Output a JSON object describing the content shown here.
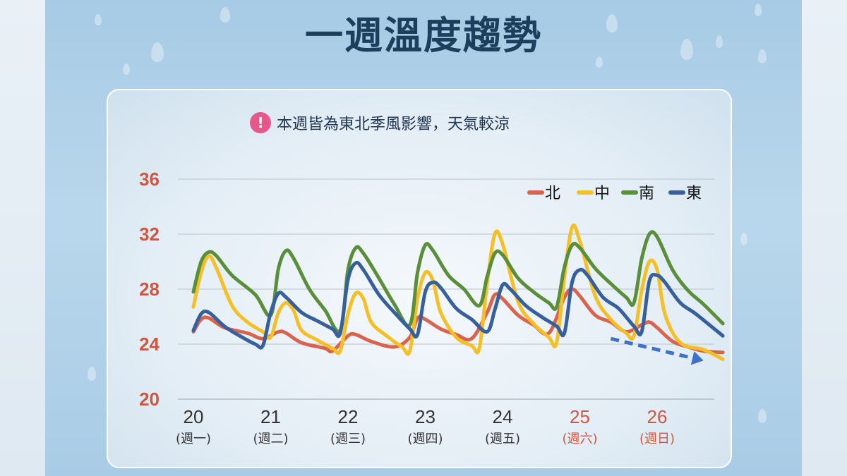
{
  "title": "一週溫度趨勢",
  "notice": {
    "icon": "exclamation-icon",
    "text": "本週皆為東北季風影響，天氣較涼"
  },
  "colors": {
    "north": "#d9644d",
    "central": "#f5bf26",
    "south": "#5a8f3a",
    "east": "#365f9e",
    "weekend": "#d0573f",
    "weekday": "#333333",
    "trend_arrow": "#3f72c6"
  },
  "chart_data": {
    "type": "line",
    "ylim": [
      20,
      36
    ],
    "yticks": [
      "36",
      "32",
      "28",
      "24",
      "20"
    ],
    "categories": [
      {
        "day": "20",
        "weekday": "(週一)",
        "weekend": false
      },
      {
        "day": "21",
        "weekday": "(週二)",
        "weekend": false
      },
      {
        "day": "22",
        "weekday": "(週三)",
        "weekend": false
      },
      {
        "day": "23",
        "weekday": "(週四)",
        "weekend": false
      },
      {
        "day": "24",
        "weekday": "(週五)",
        "weekend": false
      },
      {
        "day": "25",
        "weekday": "(週六)",
        "weekend": true
      },
      {
        "day": "26",
        "weekday": "(週日)",
        "weekend": true
      }
    ],
    "x_start": 20,
    "x_end": 26.85,
    "grid": true,
    "legend_position": "top-right",
    "series": [
      {
        "name": "北",
        "color_key": "north",
        "points": [
          [
            20.0,
            24.9
          ],
          [
            20.1,
            25.8
          ],
          [
            20.2,
            25.9
          ],
          [
            20.4,
            25.2
          ],
          [
            20.7,
            24.8
          ],
          [
            20.9,
            24.4
          ],
          [
            21.1,
            24.9
          ],
          [
            21.2,
            24.8
          ],
          [
            21.4,
            24.1
          ],
          [
            21.7,
            23.7
          ],
          [
            21.8,
            23.5
          ],
          [
            22.0,
            24.6
          ],
          [
            22.1,
            24.7
          ],
          [
            22.3,
            24.2
          ],
          [
            22.6,
            23.8
          ],
          [
            22.8,
            24.5
          ],
          [
            22.9,
            25.9
          ],
          [
            23.0,
            25.8
          ],
          [
            23.2,
            25.1
          ],
          [
            23.4,
            24.7
          ],
          [
            23.6,
            24.4
          ],
          [
            23.8,
            26.3
          ],
          [
            23.9,
            27.6
          ],
          [
            24.0,
            27.3
          ],
          [
            24.2,
            26.1
          ],
          [
            24.4,
            25.4
          ],
          [
            24.6,
            24.8
          ],
          [
            24.8,
            27.4
          ],
          [
            24.9,
            28.0
          ],
          [
            25.0,
            27.5
          ],
          [
            25.2,
            26.1
          ],
          [
            25.4,
            25.6
          ],
          [
            25.6,
            24.9
          ],
          [
            25.8,
            25.4
          ],
          [
            25.9,
            25.6
          ],
          [
            26.0,
            25.2
          ],
          [
            26.2,
            24.2
          ],
          [
            26.4,
            23.8
          ],
          [
            26.6,
            23.5
          ],
          [
            26.85,
            23.4
          ]
        ]
      },
      {
        "name": "中",
        "color_key": "central",
        "points": [
          [
            20.0,
            26.7
          ],
          [
            20.1,
            29.2
          ],
          [
            20.2,
            30.4
          ],
          [
            20.3,
            29.5
          ],
          [
            20.5,
            26.8
          ],
          [
            20.7,
            25.6
          ],
          [
            20.9,
            24.9
          ],
          [
            21.0,
            24.5
          ],
          [
            21.1,
            26.3
          ],
          [
            21.2,
            27.0
          ],
          [
            21.3,
            26.4
          ],
          [
            21.4,
            25.0
          ],
          [
            21.6,
            24.3
          ],
          [
            21.8,
            23.7
          ],
          [
            21.9,
            23.5
          ],
          [
            22.0,
            26.2
          ],
          [
            22.1,
            27.7
          ],
          [
            22.2,
            27.3
          ],
          [
            22.3,
            25.6
          ],
          [
            22.5,
            24.6
          ],
          [
            22.7,
            23.8
          ],
          [
            22.8,
            23.5
          ],
          [
            22.9,
            27.3
          ],
          [
            23.0,
            29.2
          ],
          [
            23.1,
            28.6
          ],
          [
            23.2,
            26.3
          ],
          [
            23.4,
            24.5
          ],
          [
            23.6,
            23.9
          ],
          [
            23.7,
            23.7
          ],
          [
            23.8,
            28.4
          ],
          [
            23.9,
            32.0
          ],
          [
            24.0,
            31.3
          ],
          [
            24.2,
            27.1
          ],
          [
            24.4,
            25.5
          ],
          [
            24.6,
            24.5
          ],
          [
            24.7,
            24.1
          ],
          [
            24.8,
            28.9
          ],
          [
            24.9,
            32.5
          ],
          [
            25.0,
            31.5
          ],
          [
            25.2,
            27.5
          ],
          [
            25.4,
            25.8
          ],
          [
            25.6,
            24.8
          ],
          [
            25.7,
            24.6
          ],
          [
            25.8,
            27.9
          ],
          [
            25.9,
            30.0
          ],
          [
            26.0,
            29.4
          ],
          [
            26.1,
            26.2
          ],
          [
            26.3,
            24.1
          ],
          [
            26.6,
            23.6
          ],
          [
            26.85,
            22.9
          ]
        ]
      },
      {
        "name": "南",
        "color_key": "south",
        "points": [
          [
            20.0,
            27.8
          ],
          [
            20.1,
            30.0
          ],
          [
            20.2,
            30.7
          ],
          [
            20.3,
            30.4
          ],
          [
            20.5,
            29.0
          ],
          [
            20.8,
            27.6
          ],
          [
            21.0,
            26.1
          ],
          [
            21.1,
            29.5
          ],
          [
            21.2,
            30.8
          ],
          [
            21.3,
            30.2
          ],
          [
            21.5,
            28.0
          ],
          [
            21.7,
            26.5
          ],
          [
            21.9,
            25.0
          ],
          [
            22.0,
            29.4
          ],
          [
            22.1,
            31.0
          ],
          [
            22.2,
            30.6
          ],
          [
            22.4,
            28.8
          ],
          [
            22.6,
            26.9
          ],
          [
            22.8,
            25.4
          ],
          [
            22.9,
            29.2
          ],
          [
            23.0,
            31.2
          ],
          [
            23.1,
            30.8
          ],
          [
            23.3,
            29.0
          ],
          [
            23.5,
            28.0
          ],
          [
            23.7,
            26.8
          ],
          [
            23.8,
            28.9
          ],
          [
            23.9,
            30.6
          ],
          [
            24.0,
            30.5
          ],
          [
            24.2,
            28.8
          ],
          [
            24.4,
            27.8
          ],
          [
            24.6,
            27.0
          ],
          [
            24.7,
            26.7
          ],
          [
            24.8,
            29.6
          ],
          [
            24.9,
            31.2
          ],
          [
            25.0,
            31.0
          ],
          [
            25.2,
            29.5
          ],
          [
            25.4,
            28.4
          ],
          [
            25.6,
            27.4
          ],
          [
            25.7,
            27.0
          ],
          [
            25.8,
            30.2
          ],
          [
            25.9,
            32.0
          ],
          [
            26.0,
            31.8
          ],
          [
            26.2,
            29.4
          ],
          [
            26.4,
            27.9
          ],
          [
            26.6,
            26.9
          ],
          [
            26.85,
            25.5
          ]
        ]
      },
      {
        "name": "東",
        "color_key": "east",
        "points": [
          [
            20.0,
            25.0
          ],
          [
            20.1,
            26.2
          ],
          [
            20.2,
            26.3
          ],
          [
            20.4,
            25.3
          ],
          [
            20.6,
            24.6
          ],
          [
            20.8,
            24.0
          ],
          [
            20.9,
            23.9
          ],
          [
            21.0,
            26.3
          ],
          [
            21.1,
            27.7
          ],
          [
            21.2,
            27.4
          ],
          [
            21.4,
            26.3
          ],
          [
            21.6,
            25.7
          ],
          [
            21.8,
            25.1
          ],
          [
            21.9,
            24.8
          ],
          [
            22.0,
            28.7
          ],
          [
            22.1,
            29.9
          ],
          [
            22.2,
            29.4
          ],
          [
            22.4,
            27.6
          ],
          [
            22.6,
            26.3
          ],
          [
            22.8,
            25.1
          ],
          [
            22.9,
            24.7
          ],
          [
            23.0,
            27.8
          ],
          [
            23.1,
            28.5
          ],
          [
            23.2,
            28.1
          ],
          [
            23.4,
            26.6
          ],
          [
            23.6,
            25.8
          ],
          [
            23.8,
            24.9
          ],
          [
            23.9,
            26.5
          ],
          [
            24.0,
            28.3
          ],
          [
            24.1,
            28.0
          ],
          [
            24.3,
            26.8
          ],
          [
            24.5,
            26.0
          ],
          [
            24.7,
            25.3
          ],
          [
            24.8,
            24.8
          ],
          [
            24.9,
            28.5
          ],
          [
            25.0,
            29.4
          ],
          [
            25.1,
            29.0
          ],
          [
            25.3,
            27.4
          ],
          [
            25.5,
            26.6
          ],
          [
            25.7,
            25.3
          ],
          [
            25.8,
            24.9
          ],
          [
            25.9,
            28.6
          ],
          [
            26.0,
            29.0
          ],
          [
            26.1,
            28.5
          ],
          [
            26.3,
            27.0
          ],
          [
            26.5,
            26.2
          ],
          [
            26.85,
            24.6
          ]
        ]
      }
    ],
    "trend_arrow": {
      "from": [
        25.4,
        24.4
      ],
      "to": [
        26.6,
        22.8
      ]
    }
  }
}
